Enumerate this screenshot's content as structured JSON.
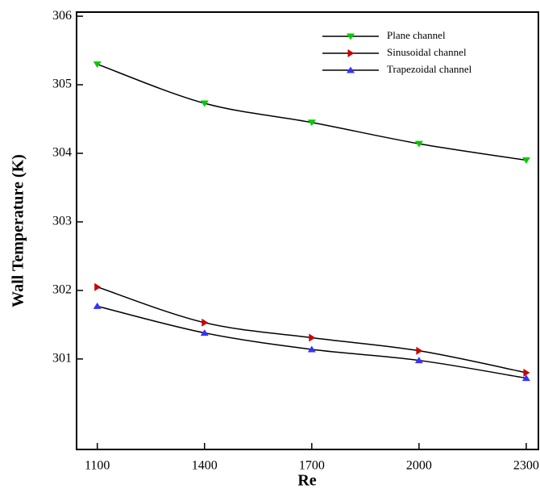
{
  "chart_data": {
    "type": "line",
    "xlabel": "Re",
    "ylabel": "Wall Temperature (K)",
    "x": [
      1100,
      1400,
      1700,
      2000,
      2300
    ],
    "series": [
      {
        "name": "Plane channel",
        "color": "#00cc00",
        "marker": "triangle-down",
        "values": [
          305.3,
          304.73,
          304.45,
          304.14,
          303.9
        ]
      },
      {
        "name": "Sinusoidal channel",
        "color": "#cc0000",
        "marker": "triangle-right",
        "values": [
          302.05,
          301.53,
          301.31,
          301.12,
          300.8
        ]
      },
      {
        "name": "Trapezoidal channel",
        "color": "#3333ff",
        "marker": "triangle-up",
        "values": [
          301.77,
          301.38,
          301.14,
          300.98,
          300.72
        ]
      }
    ],
    "xlim": [
      1042,
      2334
    ],
    "ylim": [
      299.68,
      306.06
    ],
    "xticks": [
      1100,
      1400,
      1700,
      2000,
      2300
    ],
    "yticks": [
      301,
      302,
      303,
      304,
      305,
      306
    ],
    "legend": "upper right"
  }
}
